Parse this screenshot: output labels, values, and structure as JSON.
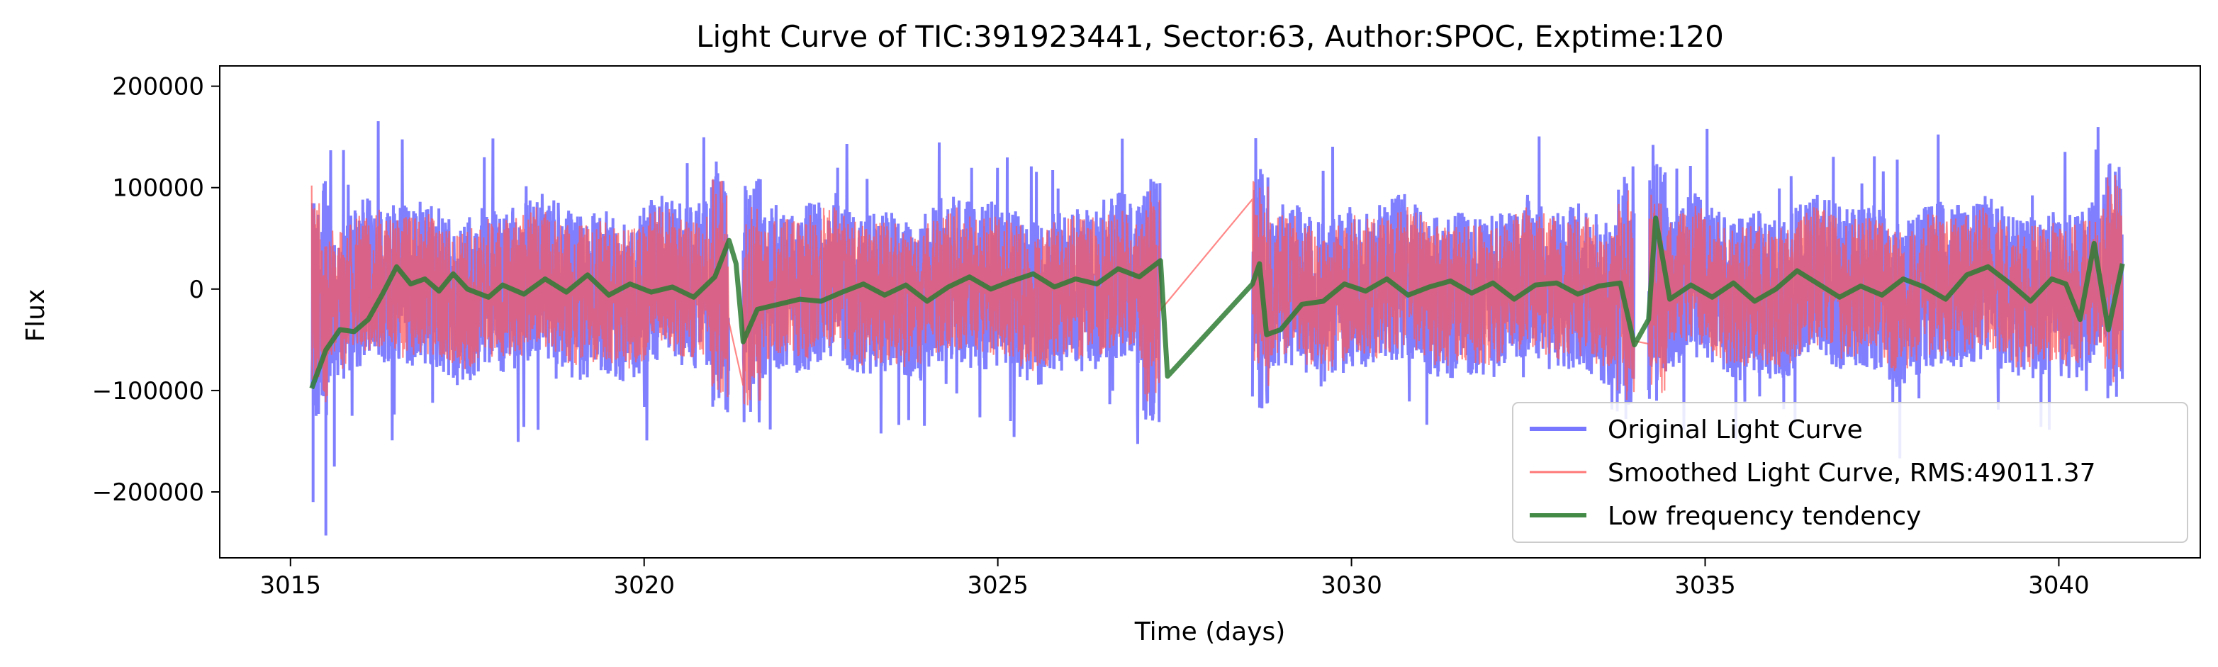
{
  "chart_data": {
    "type": "line",
    "title": "Light Curve of TIC:391923441, Sector:63, Author:SPOC, Exptime:120",
    "xlabel": "Time (days)",
    "ylabel": "Flux",
    "xlim": [
      3014.0,
      3042.0
    ],
    "ylim": [
      -265000,
      220000
    ],
    "xticks": [
      3015,
      3020,
      3025,
      3030,
      3035,
      3040
    ],
    "xtick_labels": [
      "3015",
      "3020",
      "3025",
      "3030",
      "3035",
      "3040"
    ],
    "yticks": [
      -200000,
      -100000,
      0,
      100000,
      200000
    ],
    "ytick_labels": [
      "−200000",
      "−100000",
      "0",
      "100000",
      "200000"
    ],
    "grid": false,
    "legend_position": "bottom-right",
    "segments": [
      [
        3015.3,
        3021.2
      ],
      [
        3021.4,
        3027.3
      ],
      [
        3028.6,
        3034.0
      ],
      [
        3034.2,
        3040.9
      ]
    ],
    "series": [
      {
        "name": "Original Light Curve",
        "color": "#5555ff",
        "opacity": 0.75,
        "amplitude": 82000,
        "spike_max": 195000,
        "spike_min": -243000
      },
      {
        "name": "Smoothed Light Curve, RMS:49011.37",
        "color": "#ff5555",
        "opacity": 0.7,
        "amplitude": 70000
      },
      {
        "name": "Low frequency tendency",
        "color": "#2e7d32",
        "opacity": 0.85,
        "points": [
          [
            3015.3,
            -98000
          ],
          [
            3015.5,
            -60000
          ],
          [
            3015.7,
            -40000
          ],
          [
            3015.9,
            -42000
          ],
          [
            3016.1,
            -30000
          ],
          [
            3016.3,
            -5000
          ],
          [
            3016.5,
            22000
          ],
          [
            3016.7,
            5000
          ],
          [
            3016.9,
            10000
          ],
          [
            3017.1,
            -2000
          ],
          [
            3017.3,
            15000
          ],
          [
            3017.5,
            0
          ],
          [
            3017.8,
            -8000
          ],
          [
            3018.0,
            4000
          ],
          [
            3018.3,
            -5000
          ],
          [
            3018.6,
            10000
          ],
          [
            3018.9,
            -3000
          ],
          [
            3019.2,
            14000
          ],
          [
            3019.5,
            -6000
          ],
          [
            3019.8,
            5000
          ],
          [
            3020.1,
            -3000
          ],
          [
            3020.4,
            2000
          ],
          [
            3020.7,
            -8000
          ],
          [
            3021.0,
            12000
          ],
          [
            3021.2,
            48000
          ],
          [
            3021.3,
            25000
          ],
          [
            3021.4,
            -52000
          ],
          [
            3021.6,
            -20000
          ],
          [
            3021.9,
            -15000
          ],
          [
            3022.2,
            -10000
          ],
          [
            3022.5,
            -12000
          ],
          [
            3022.8,
            -3000
          ],
          [
            3023.1,
            5000
          ],
          [
            3023.4,
            -6000
          ],
          [
            3023.7,
            4000
          ],
          [
            3024.0,
            -12000
          ],
          [
            3024.3,
            2000
          ],
          [
            3024.6,
            12000
          ],
          [
            3024.9,
            0
          ],
          [
            3025.2,
            8000
          ],
          [
            3025.5,
            15000
          ],
          [
            3025.8,
            2000
          ],
          [
            3026.1,
            10000
          ],
          [
            3026.4,
            5000
          ],
          [
            3026.7,
            20000
          ],
          [
            3027.0,
            12000
          ],
          [
            3027.3,
            28000
          ],
          [
            3027.4,
            -86000
          ],
          [
            3028.6,
            5000
          ],
          [
            3028.7,
            25000
          ],
          [
            3028.8,
            -45000
          ],
          [
            3029.0,
            -40000
          ],
          [
            3029.3,
            -15000
          ],
          [
            3029.6,
            -12000
          ],
          [
            3029.9,
            5000
          ],
          [
            3030.2,
            -2000
          ],
          [
            3030.5,
            10000
          ],
          [
            3030.8,
            -6000
          ],
          [
            3031.1,
            2000
          ],
          [
            3031.4,
            8000
          ],
          [
            3031.7,
            -4000
          ],
          [
            3032.0,
            6000
          ],
          [
            3032.3,
            -10000
          ],
          [
            3032.6,
            4000
          ],
          [
            3032.9,
            6000
          ],
          [
            3033.2,
            -5000
          ],
          [
            3033.5,
            3000
          ],
          [
            3033.8,
            6000
          ],
          [
            3034.0,
            -55000
          ],
          [
            3034.2,
            -30000
          ],
          [
            3034.3,
            70000
          ],
          [
            3034.5,
            -10000
          ],
          [
            3034.8,
            4000
          ],
          [
            3035.1,
            -8000
          ],
          [
            3035.4,
            6000
          ],
          [
            3035.7,
            -12000
          ],
          [
            3036.0,
            0
          ],
          [
            3036.3,
            18000
          ],
          [
            3036.6,
            5000
          ],
          [
            3036.9,
            -8000
          ],
          [
            3037.2,
            3000
          ],
          [
            3037.5,
            -6000
          ],
          [
            3037.8,
            10000
          ],
          [
            3038.1,
            2000
          ],
          [
            3038.4,
            -10000
          ],
          [
            3038.7,
            14000
          ],
          [
            3039.0,
            22000
          ],
          [
            3039.3,
            6000
          ],
          [
            3039.6,
            -12000
          ],
          [
            3039.9,
            10000
          ],
          [
            3040.1,
            5000
          ],
          [
            3040.3,
            -30000
          ],
          [
            3040.5,
            45000
          ],
          [
            3040.7,
            -40000
          ],
          [
            3040.9,
            25000
          ]
        ]
      }
    ]
  }
}
